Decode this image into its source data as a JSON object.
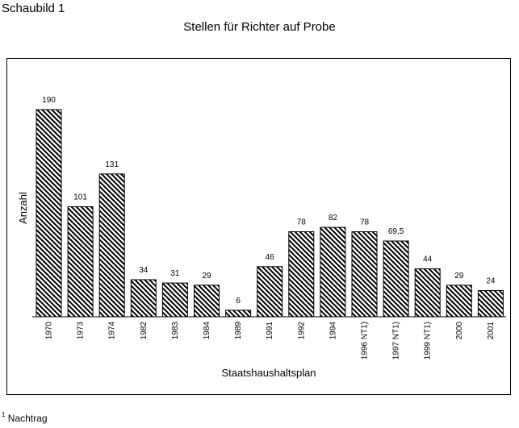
{
  "figure_label": "Schaubild 1",
  "footnote": {
    "marker": "1",
    "text": "Nachtrag"
  },
  "chart_data": {
    "type": "bar",
    "title": "Stellen für Richter auf Probe",
    "xlabel": "Staatshaushaltsplan",
    "ylabel": "Anzahl",
    "ylim": [
      0,
      200
    ],
    "grid": false,
    "legend": "none",
    "categories": [
      "1970",
      "1973",
      "1974",
      "1982",
      "1983",
      "1984",
      "1989",
      "1991",
      "1992",
      "1994",
      "1996 NT1)",
      "1997 NT1)",
      "1999 NT1)",
      "2000",
      "2001"
    ],
    "values": [
      190,
      101,
      131,
      34,
      31,
      29,
      6,
      46,
      78,
      82,
      78,
      69.5,
      44,
      29,
      24
    ],
    "value_labels": [
      "190",
      "101",
      "131",
      "34",
      "31",
      "29",
      "6",
      "46",
      "78",
      "82",
      "78",
      "69,5",
      "44",
      "29",
      "24"
    ],
    "bar_pattern": "diagonal-hatch",
    "bar_color": "#000000"
  }
}
